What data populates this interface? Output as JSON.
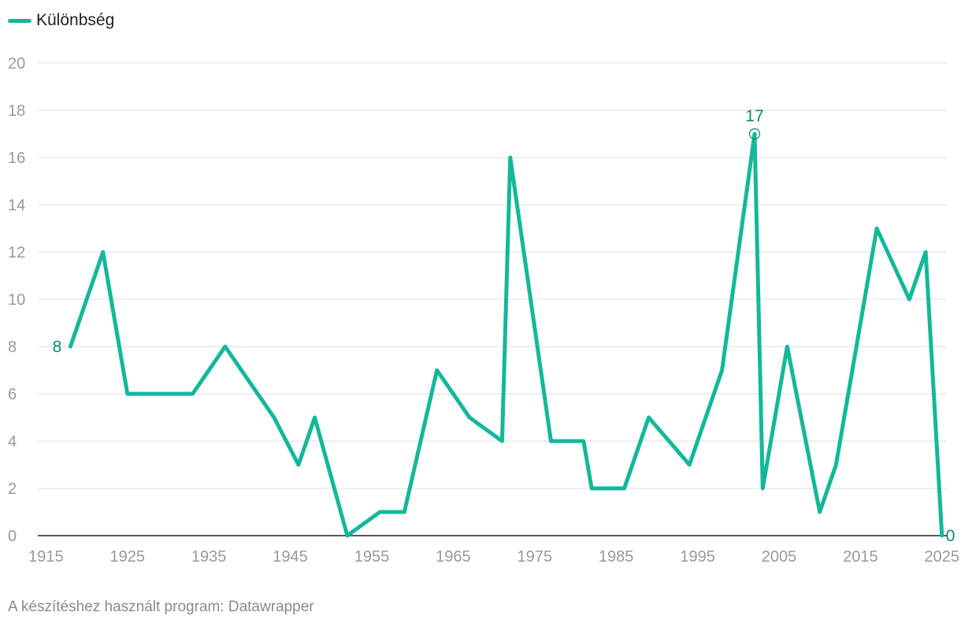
{
  "colors": {
    "series": "#13b89b",
    "label": "#0a8a73",
    "grid": "#dddddd",
    "axis": "#222222",
    "tick": "#9a9a9a"
  },
  "chart_data": {
    "type": "line",
    "title": "",
    "xlabel": "",
    "ylabel": "",
    "legend_position": "top-left",
    "grid": true,
    "xlim": [
      1914,
      2025.6
    ],
    "ylim": [
      0,
      20
    ],
    "x_ticks": [
      "1915",
      "1925",
      "1935",
      "1945",
      "1955",
      "1965",
      "1975",
      "1985",
      "1995",
      "2005",
      "2015",
      "2025"
    ],
    "y_ticks": [
      "0",
      "2",
      "4",
      "6",
      "8",
      "10",
      "12",
      "14",
      "16",
      "18",
      "20"
    ],
    "series": [
      {
        "name": "Különbség",
        "x": [
          1918,
          1922,
          1925,
          1933,
          1937,
          1943,
          1946,
          1948,
          1952,
          1956,
          1959,
          1963,
          1967,
          1971,
          1972,
          1977,
          1981,
          1982,
          1986,
          1989,
          1994,
          1998,
          2002,
          2003,
          2006,
          2010,
          2012,
          2017,
          2021,
          2023,
          2025
        ],
        "values": [
          8,
          12,
          6,
          6,
          8,
          5,
          3,
          5,
          0,
          1,
          1,
          7,
          5,
          4,
          16,
          4,
          4,
          2,
          2,
          5,
          3,
          7,
          17,
          2,
          8,
          1,
          3,
          13,
          10,
          12,
          0
        ]
      }
    ],
    "annotations": [
      {
        "text": "8",
        "x": 1918,
        "y": 8,
        "position": "left"
      },
      {
        "text": "17",
        "x": 2002,
        "y": 17,
        "position": "top",
        "marker": true
      },
      {
        "text": "0",
        "x": 2025,
        "y": 0,
        "position": "right"
      }
    ]
  },
  "footer": {
    "credit": "A készítéshez használt program: Datawrapper"
  }
}
